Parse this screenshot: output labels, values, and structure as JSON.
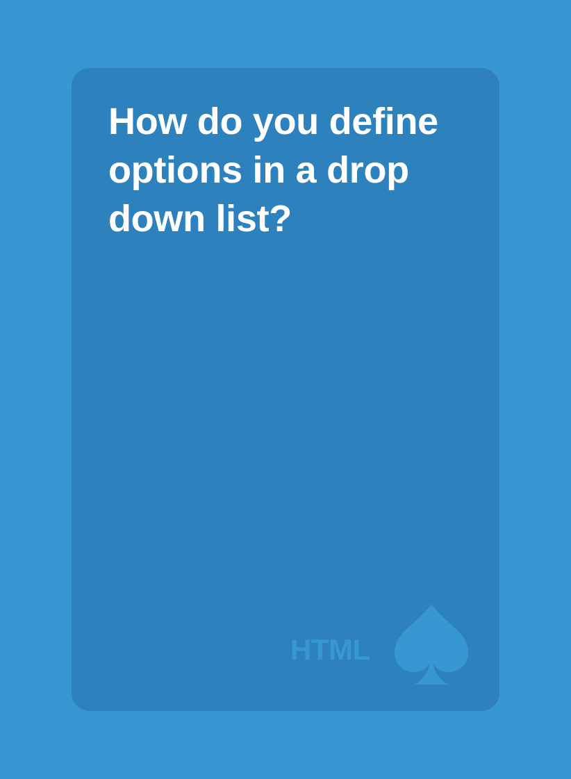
{
  "card": {
    "question": "How do you define options in a drop down list?",
    "category": "HTML",
    "suit_icon": "spade-icon"
  },
  "colors": {
    "background": "#3797d3",
    "card": "#2d82be",
    "text": "#ffffff",
    "accent": "#3797d3"
  }
}
